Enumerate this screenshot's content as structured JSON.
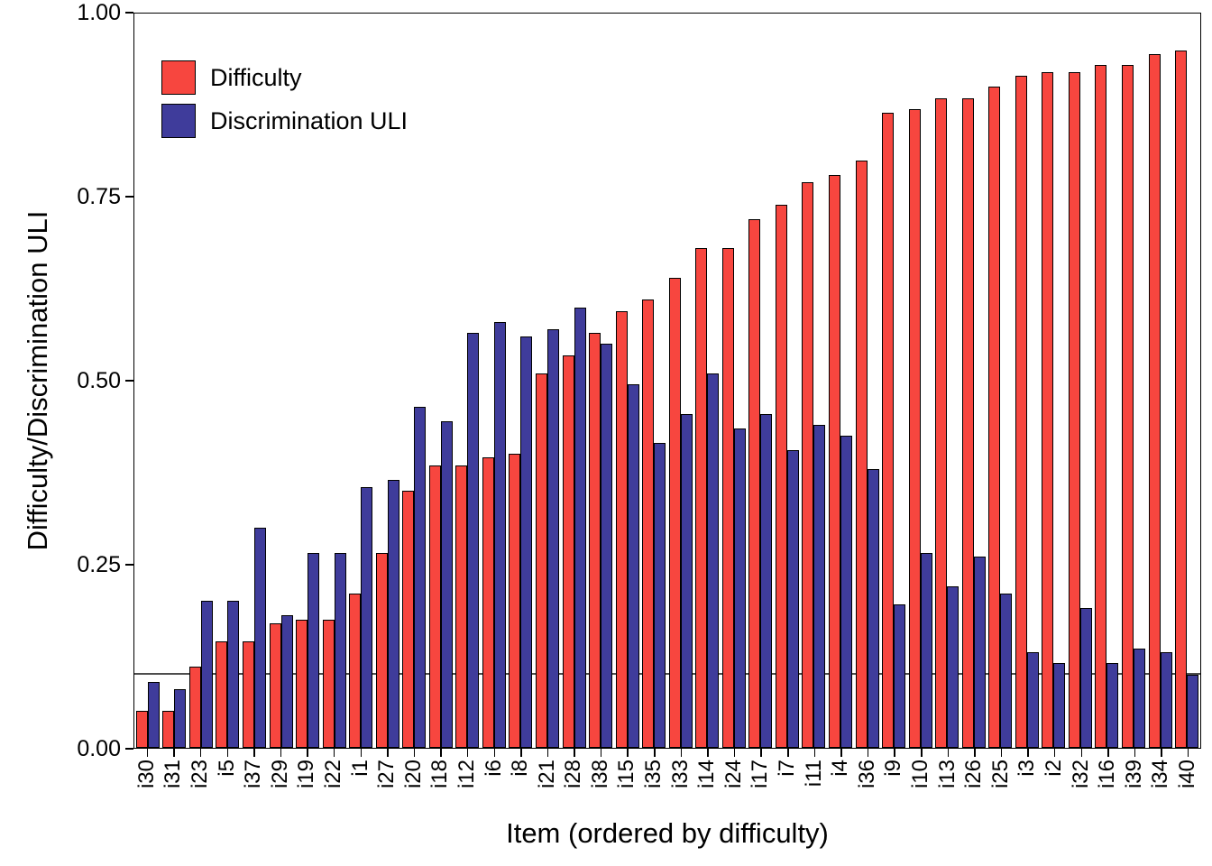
{
  "chart_data": {
    "type": "bar",
    "title": "",
    "xlabel": "Item (ordered by difficulty)",
    "ylabel": "Difficulty/Discrimination ULI",
    "ylim": [
      0,
      1.0
    ],
    "grid": false,
    "yticks": [
      {
        "value": 0.0,
        "label": "0.00"
      },
      {
        "value": 0.25,
        "label": "0.25"
      },
      {
        "value": 0.5,
        "label": "0.50"
      },
      {
        "value": 0.75,
        "label": "0.75"
      },
      {
        "value": 1.0,
        "label": "1.00"
      }
    ],
    "reference_line": {
      "value": 0.1,
      "color": "#4d4d4d"
    },
    "legend": {
      "position": "top-left",
      "entries": [
        {
          "name": "Difficulty",
          "color": "#f7463f"
        },
        {
          "name": "Discrimination ULI",
          "color": "#3f3c9b"
        }
      ]
    },
    "categories": [
      "i30",
      "i31",
      "i23",
      "i5",
      "i37",
      "i29",
      "i19",
      "i22",
      "i1",
      "i27",
      "i20",
      "i18",
      "i12",
      "i6",
      "i8",
      "i21",
      "i28",
      "i38",
      "i15",
      "i35",
      "i33",
      "i14",
      "i24",
      "i17",
      "i7",
      "i11",
      "i4",
      "i36",
      "i9",
      "i10",
      "i13",
      "i26",
      "i25",
      "i3",
      "i2",
      "i32",
      "i16",
      "i39",
      "i34",
      "i40"
    ],
    "series": [
      {
        "name": "Difficulty",
        "color": "#f7463f",
        "values": [
          0.05,
          0.05,
          0.11,
          0.145,
          0.145,
          0.17,
          0.175,
          0.175,
          0.21,
          0.265,
          0.35,
          0.385,
          0.385,
          0.395,
          0.4,
          0.51,
          0.535,
          0.565,
          0.595,
          0.61,
          0.64,
          0.68,
          0.68,
          0.72,
          0.74,
          0.77,
          0.78,
          0.8,
          0.865,
          0.87,
          0.885,
          0.885,
          0.9,
          0.915,
          0.92,
          0.92,
          0.93,
          0.93,
          0.945,
          0.95
        ]
      },
      {
        "name": "Discrimination ULI",
        "color": "#3f3c9b",
        "values": [
          0.09,
          0.08,
          0.2,
          0.2,
          0.3,
          0.18,
          0.265,
          0.265,
          0.355,
          0.365,
          0.465,
          0.445,
          0.565,
          0.58,
          0.56,
          0.57,
          0.6,
          0.55,
          0.495,
          0.415,
          0.455,
          0.51,
          0.435,
          0.455,
          0.405,
          0.44,
          0.425,
          0.38,
          0.195,
          0.265,
          0.22,
          0.26,
          0.21,
          0.13,
          0.115,
          0.19,
          0.115,
          0.135,
          0.13,
          0.1
        ]
      }
    ]
  }
}
